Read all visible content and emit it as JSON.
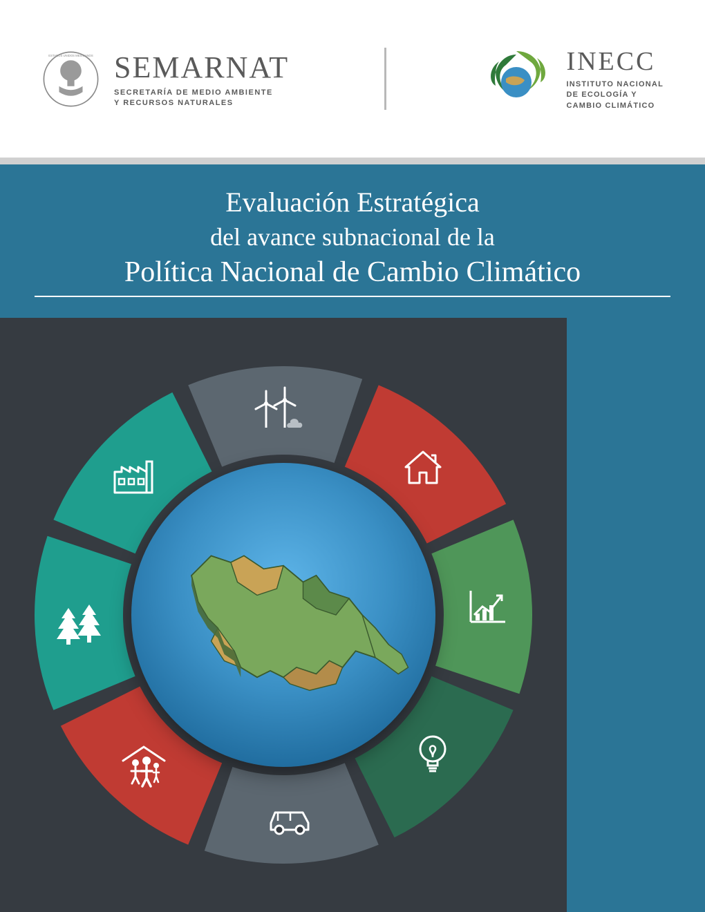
{
  "header": {
    "semarnat": {
      "name": "SEMARNAT",
      "subtitle_line1": "SECRETARÍA DE MEDIO AMBIENTE",
      "subtitle_line2": "Y RECURSOS NATURALES"
    },
    "inecc": {
      "name": "INECC",
      "subtitle_line1": "INSTITUTO NACIONAL",
      "subtitle_line2": "DE ECOLOGÍA Y",
      "subtitle_line3": "CAMBIO CLIMÁTICO"
    }
  },
  "title": {
    "line1": "Evaluación Estratégica",
    "line2": "del avance subnacional de la",
    "line3": "Política Nacional de Cambio Climático"
  },
  "colors": {
    "page_bg": "#ffffff",
    "title_band": "#2b7596",
    "side_strip": "#2b7596",
    "graphic_bg": "#363b41",
    "grey_strip": "#d0d0d0",
    "text_grey": "#5a5a5a",
    "white": "#ffffff"
  },
  "infographic": {
    "type": "radial-segmented-infographic",
    "background_color": "#363b41",
    "outer_radius": 360,
    "inner_radius": 232,
    "gap_deg": 4,
    "segments": [
      {
        "idx": 0,
        "start_deg": -67.5,
        "color": "#c03b33",
        "icon": "house"
      },
      {
        "idx": 1,
        "start_deg": -22.5,
        "color": "#4f9659",
        "icon": "growth-chart"
      },
      {
        "idx": 2,
        "start_deg": 22.5,
        "color": "#2b6b50",
        "icon": "lightbulb"
      },
      {
        "idx": 3,
        "start_deg": 67.5,
        "color": "#5c6770",
        "icon": "car"
      },
      {
        "idx": 4,
        "start_deg": 112.5,
        "color": "#c03b33",
        "icon": "family-shelter"
      },
      {
        "idx": 5,
        "start_deg": 157.5,
        "color": "#1f9e8e",
        "icon": "trees"
      },
      {
        "idx": 6,
        "start_deg": 202.5,
        "color": "#1f9e8e",
        "icon": "factory"
      },
      {
        "idx": 7,
        "start_deg": 247.5,
        "color": "#5c6770",
        "icon": "wind-turbines"
      }
    ],
    "center": {
      "globe_gradient": [
        "#5db4e8",
        "#3a8fc4",
        "#1e6a9c",
        "#134f77"
      ],
      "map_land_colors": [
        "#7aa85c",
        "#c9a356",
        "#5c8a4a",
        "#b38c4a"
      ]
    }
  }
}
